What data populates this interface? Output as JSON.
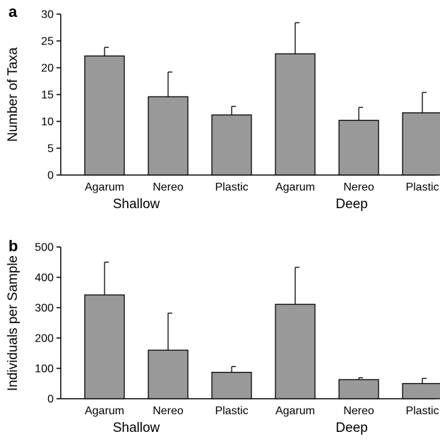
{
  "colors": {
    "bar_fill": "#999999",
    "bar_stroke": "#000000",
    "axis": "#000000"
  },
  "chart_data": [
    {
      "type": "bar",
      "panel_label": "a",
      "ylabel": "Number of Taxa",
      "ylim": [
        0,
        30
      ],
      "yticks": [
        0,
        5,
        10,
        15,
        20,
        25,
        30
      ],
      "categories": [
        "Agarum",
        "Nereo",
        "Plastic",
        "Agarum",
        "Nereo",
        "Plastic"
      ],
      "groups": [
        "Shallow",
        "Deep"
      ],
      "values": [
        22.2,
        14.6,
        11.2,
        22.6,
        10.2,
        11.6
      ],
      "error": [
        1.6,
        4.6,
        1.6,
        5.8,
        2.4,
        3.8
      ],
      "grid": false
    },
    {
      "type": "bar",
      "panel_label": "b",
      "ylabel": "Individuals per Sample",
      "ylim": [
        0,
        500
      ],
      "yticks": [
        0,
        100,
        200,
        300,
        400,
        500
      ],
      "categories": [
        "Agarum",
        "Nereo",
        "Plastic",
        "Agarum",
        "Nereo",
        "Plastic"
      ],
      "groups": [
        "Shallow",
        "Deep"
      ],
      "values": [
        342,
        160,
        87,
        311,
        63,
        50
      ],
      "error": [
        108,
        122,
        19,
        122,
        6,
        17
      ],
      "grid": false
    }
  ]
}
